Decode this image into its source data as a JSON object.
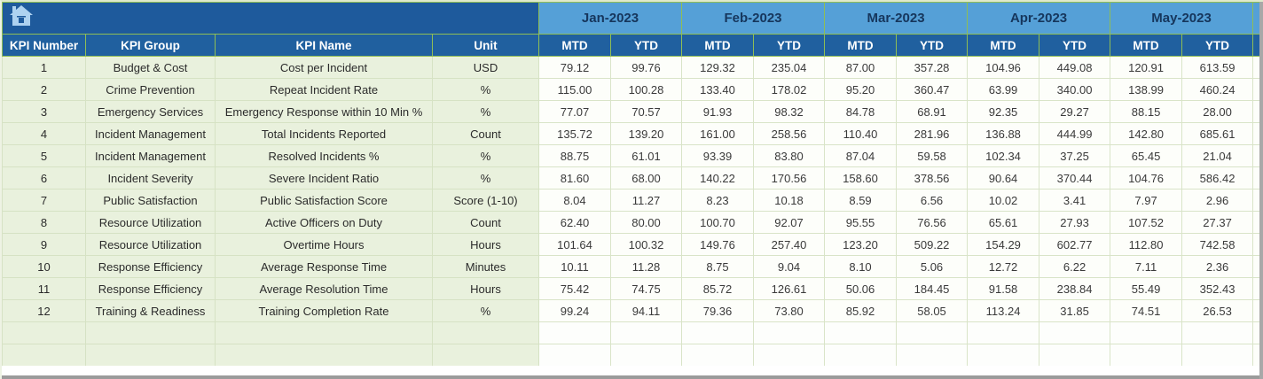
{
  "banner": {
    "home_icon": "home-icon",
    "home_icon_color": "#aed2f0"
  },
  "colors": {
    "banner_navy": "#1e5a9c",
    "subheader_navy": "#20609f",
    "month_blue": "#55a0d7",
    "month_text": "#16365c",
    "header_gridline_green": "#8fbe55",
    "body_gridline_green": "#d9e4c8",
    "label_cell_green": "#e9f1dd",
    "value_cell_white": "#fdfefa",
    "window_edge_gray": "#9b9b9b"
  },
  "header": {
    "label_columns": [
      "KPI Number",
      "KPI Group",
      "KPI Name",
      "Unit"
    ],
    "months": [
      "Jan-2023",
      "Feb-2023",
      "Mar-2023",
      "Apr-2023",
      "May-2023"
    ],
    "sub_columns": [
      "MTD",
      "YTD"
    ]
  },
  "rows": [
    {
      "num": "1",
      "group": "Budget & Cost",
      "name": "Cost per Incident",
      "unit": "USD",
      "values": [
        "79.12",
        "99.76",
        "129.32",
        "235.04",
        "87.00",
        "357.28",
        "104.96",
        "449.08",
        "120.91",
        "613.59"
      ]
    },
    {
      "num": "2",
      "group": "Crime Prevention",
      "name": "Repeat Incident Rate",
      "unit": "%",
      "values": [
        "115.00",
        "100.28",
        "133.40",
        "178.02",
        "95.20",
        "360.47",
        "63.99",
        "340.00",
        "138.99",
        "460.24"
      ]
    },
    {
      "num": "3",
      "group": "Emergency Services",
      "name": "Emergency Response within 10 Min %",
      "unit": "%",
      "values": [
        "77.07",
        "70.57",
        "91.93",
        "98.32",
        "84.78",
        "68.91",
        "92.35",
        "29.27",
        "88.15",
        "28.00"
      ]
    },
    {
      "num": "4",
      "group": "Incident Management",
      "name": "Total Incidents Reported",
      "unit": "Count",
      "values": [
        "135.72",
        "139.20",
        "161.00",
        "258.56",
        "110.40",
        "281.96",
        "136.88",
        "444.99",
        "142.80",
        "685.61"
      ]
    },
    {
      "num": "5",
      "group": "Incident Management",
      "name": "Resolved Incidents %",
      "unit": "%",
      "values": [
        "88.75",
        "61.01",
        "93.39",
        "83.80",
        "87.04",
        "59.58",
        "102.34",
        "37.25",
        "65.45",
        "21.04"
      ]
    },
    {
      "num": "6",
      "group": "Incident Severity",
      "name": "Severe Incident Ratio",
      "unit": "%",
      "values": [
        "81.60",
        "68.00",
        "140.22",
        "170.56",
        "158.60",
        "378.56",
        "90.64",
        "370.44",
        "104.76",
        "586.42"
      ]
    },
    {
      "num": "7",
      "group": "Public Satisfaction",
      "name": "Public Satisfaction Score",
      "unit": "Score (1-10)",
      "values": [
        "8.04",
        "11.27",
        "8.23",
        "10.18",
        "8.59",
        "6.56",
        "10.02",
        "3.41",
        "7.97",
        "2.96"
      ]
    },
    {
      "num": "8",
      "group": "Resource Utilization",
      "name": "Active Officers on Duty",
      "unit": "Count",
      "values": [
        "62.40",
        "80.00",
        "100.70",
        "92.07",
        "95.55",
        "76.56",
        "65.61",
        "27.93",
        "107.52",
        "27.37"
      ]
    },
    {
      "num": "9",
      "group": "Resource Utilization",
      "name": "Overtime Hours",
      "unit": "Hours",
      "values": [
        "101.64",
        "100.32",
        "149.76",
        "257.40",
        "123.20",
        "509.22",
        "154.29",
        "602.77",
        "112.80",
        "742.58"
      ]
    },
    {
      "num": "10",
      "group": "Response Efficiency",
      "name": "Average Response Time",
      "unit": "Minutes",
      "values": [
        "10.11",
        "11.28",
        "8.75",
        "9.04",
        "8.10",
        "5.06",
        "12.72",
        "6.22",
        "7.11",
        "2.36"
      ]
    },
    {
      "num": "11",
      "group": "Response Efficiency",
      "name": "Average Resolution Time",
      "unit": "Hours",
      "values": [
        "75.42",
        "74.75",
        "85.72",
        "126.61",
        "50.06",
        "184.45",
        "91.58",
        "238.84",
        "55.49",
        "352.43"
      ]
    },
    {
      "num": "12",
      "group": "Training & Readiness",
      "name": "Training Completion Rate",
      "unit": "%",
      "values": [
        "99.24",
        "94.11",
        "79.36",
        "73.80",
        "85.92",
        "58.05",
        "113.24",
        "31.85",
        "74.51",
        "26.53"
      ]
    }
  ],
  "empty_row_count": 2
}
